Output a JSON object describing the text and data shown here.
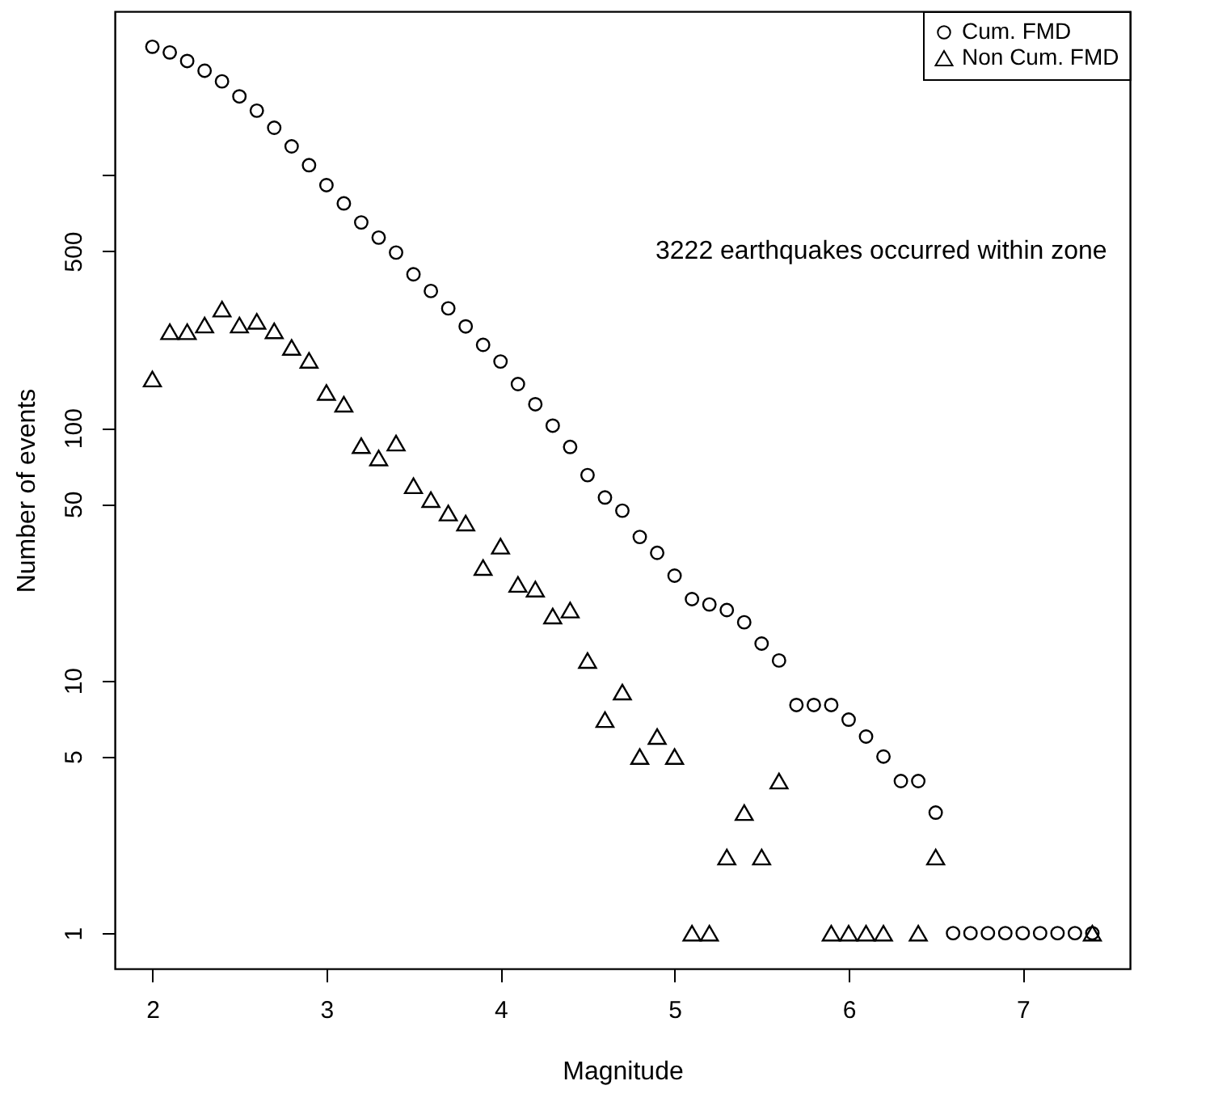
{
  "chart_data": {
    "type": "scatter",
    "xlabel": "Magnitude",
    "ylabel": "Number of events",
    "annotations": [
      "3222 earthquakes occurred within zone"
    ],
    "log": "y",
    "xlim": [
      1.784,
      7.616
    ],
    "xticks": [
      2,
      3,
      4,
      5,
      6,
      7
    ],
    "ylim": [
      0.724,
      4450
    ],
    "yticks": [
      1,
      5,
      10,
      50,
      100,
      500,
      {
        "value": 1000,
        "label": null
      }
    ],
    "grid": false,
    "legend": "top right",
    "series": [
      {
        "name": "Cum. FMD",
        "color": "#000000",
        "marker": "circle",
        "x": [
          2.0,
          2.1,
          2.2,
          2.3,
          2.4,
          2.5,
          2.6,
          2.7,
          2.8,
          2.9,
          3.0,
          3.1,
          3.2,
          3.3,
          3.4,
          3.5,
          3.6,
          3.7,
          3.8,
          3.9,
          4.0,
          4.1,
          4.2,
          4.3,
          4.4,
          4.5,
          4.6,
          4.7,
          4.8,
          4.9,
          5.0,
          5.1,
          5.2,
          5.3,
          5.4,
          5.5,
          5.6,
          5.7,
          5.8,
          5.9,
          6.0,
          6.1,
          6.2,
          6.3,
          6.4,
          6.5,
          6.6,
          6.7,
          6.8,
          6.9,
          7.0,
          7.1,
          7.2,
          7.3,
          7.4
        ],
        "values": [
          3222,
          3060,
          2830,
          2590,
          2350,
          2050,
          1800,
          1540,
          1300,
          1095,
          913,
          773,
          650,
          566,
          494,
          405,
          348,
          297,
          252,
          213,
          183,
          149,
          124,
          102,
          84,
          65,
          53,
          47,
          37,
          32,
          26,
          21,
          20,
          19,
          17,
          14,
          12,
          8,
          8,
          8,
          7,
          6,
          5,
          4,
          4,
          3,
          1,
          1,
          1,
          1,
          1,
          1,
          1,
          1,
          1
        ]
      },
      {
        "name": "Non Cum. FMD",
        "color": "#000000",
        "marker": "triangle",
        "x": [
          2.0,
          2.1,
          2.2,
          2.3,
          2.4,
          2.5,
          2.6,
          2.7,
          2.8,
          2.9,
          3.0,
          3.1,
          3.2,
          3.3,
          3.4,
          3.5,
          3.6,
          3.7,
          3.8,
          3.9,
          4.0,
          4.1,
          4.2,
          4.3,
          4.4,
          4.5,
          4.6,
          4.7,
          4.8,
          4.9,
          5.0,
          5.1,
          5.2,
          5.3,
          5.4,
          5.5,
          5.6,
          5.9,
          6.0,
          6.1,
          6.2,
          6.4,
          6.5,
          7.4
        ],
        "values": [
          156,
          240,
          240,
          255,
          295,
          255,
          264,
          242,
          208,
          185,
          138,
          124,
          85,
          76,
          87,
          59,
          52,
          46,
          42,
          28,
          34,
          24,
          23,
          18,
          19,
          12,
          7,
          9,
          5,
          6,
          5,
          1,
          1,
          2,
          3,
          2,
          4,
          1,
          1,
          1,
          1,
          1,
          2,
          1
        ]
      }
    ]
  }
}
